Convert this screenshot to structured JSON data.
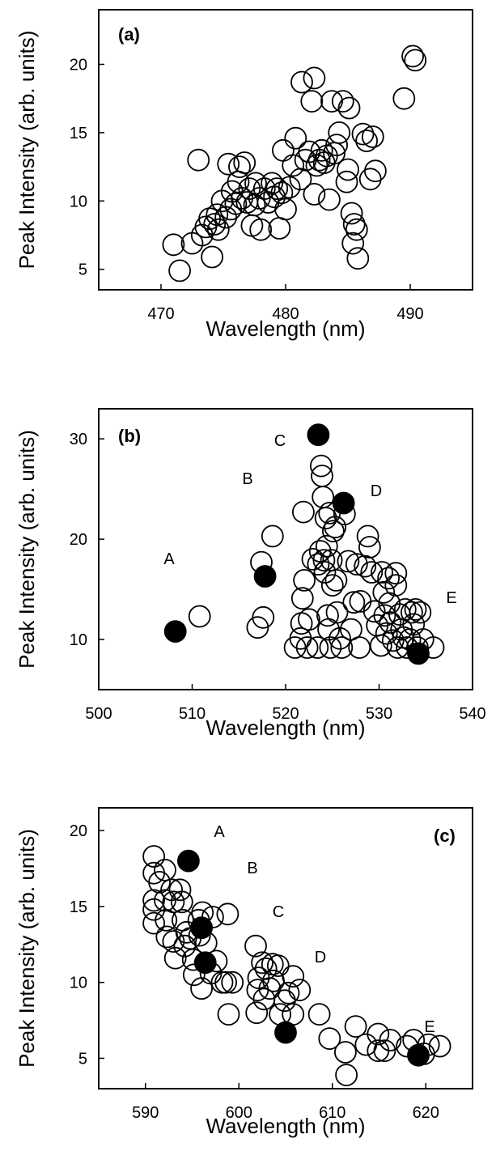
{
  "chart_data": [
    {
      "type": "scatter",
      "panel_label": "(a)",
      "xlabel": "Wavelength (nm)",
      "ylabel": "Peak Intensity (arb. units)",
      "xlim": [
        465,
        495
      ],
      "ylim": [
        3.5,
        24
      ],
      "xticks": [
        470,
        480,
        490
      ],
      "yticks": [
        5,
        10,
        15,
        20
      ],
      "xtick_labels": [
        "470",
        "480",
        "490"
      ],
      "ytick_labels": [
        "5",
        "10",
        "15",
        "20"
      ],
      "grid": false,
      "series": [
        {
          "marker": "open-circle",
          "points": [
            [
              471.0,
              6.8
            ],
            [
              471.5,
              4.9
            ],
            [
              472.5,
              6.9
            ],
            [
              473.0,
              13.0
            ],
            [
              473.3,
              7.5
            ],
            [
              473.6,
              8.1
            ],
            [
              473.9,
              8.7
            ],
            [
              474.1,
              5.9
            ],
            [
              474.3,
              8.3
            ],
            [
              474.5,
              9.0
            ],
            [
              474.6,
              7.9
            ],
            [
              474.9,
              10.0
            ],
            [
              475.2,
              8.8
            ],
            [
              475.4,
              12.7
            ],
            [
              475.6,
              9.4
            ],
            [
              475.7,
              10.7
            ],
            [
              476.0,
              9.8
            ],
            [
              476.2,
              11.4
            ],
            [
              476.3,
              12.5
            ],
            [
              476.5,
              10.2
            ],
            [
              476.7,
              12.8
            ],
            [
              476.9,
              9.9
            ],
            [
              477.1,
              10.9
            ],
            [
              477.3,
              8.2
            ],
            [
              477.5,
              9.7
            ],
            [
              477.6,
              11.3
            ],
            [
              477.9,
              10.2
            ],
            [
              478.0,
              7.9
            ],
            [
              478.3,
              10.9
            ],
            [
              478.6,
              9.9
            ],
            [
              478.9,
              11.3
            ],
            [
              479.1,
              10.3
            ],
            [
              479.3,
              10.9
            ],
            [
              479.5,
              8.0
            ],
            [
              479.7,
              10.6
            ],
            [
              479.8,
              13.7
            ],
            [
              480.0,
              9.4
            ],
            [
              480.3,
              11.0
            ],
            [
              480.6,
              12.6
            ],
            [
              480.8,
              14.6
            ],
            [
              481.2,
              11.6
            ],
            [
              481.3,
              18.7
            ],
            [
              481.6,
              13.0
            ],
            [
              481.9,
              13.6
            ],
            [
              482.1,
              17.3
            ],
            [
              482.3,
              19.0
            ],
            [
              482.3,
              10.5
            ],
            [
              482.5,
              12.6
            ],
            [
              482.7,
              13.0
            ],
            [
              482.9,
              13.7
            ],
            [
              483.1,
              12.8
            ],
            [
              483.3,
              13.3
            ],
            [
              483.5,
              10.1
            ],
            [
              483.7,
              17.3
            ],
            [
              483.9,
              13.5
            ],
            [
              484.1,
              14.1
            ],
            [
              484.3,
              15.0
            ],
            [
              484.6,
              17.3
            ],
            [
              484.9,
              11.4
            ],
            [
              485.0,
              12.3
            ],
            [
              485.1,
              16.8
            ],
            [
              485.3,
              9.1
            ],
            [
              485.4,
              6.9
            ],
            [
              485.5,
              8.3
            ],
            [
              485.7,
              7.9
            ],
            [
              485.8,
              5.8
            ],
            [
              486.2,
              14.9
            ],
            [
              486.5,
              14.4
            ],
            [
              486.8,
              11.6
            ],
            [
              487.0,
              14.7
            ],
            [
              487.2,
              12.2
            ],
            [
              489.5,
              17.5
            ],
            [
              490.2,
              20.6
            ],
            [
              490.4,
              20.3
            ]
          ]
        }
      ]
    },
    {
      "type": "scatter",
      "panel_label": "(b)",
      "xlabel": "Wavelength (nm)",
      "ylabel": "Peak Intensity (arb. units)",
      "xlim": [
        500,
        540
      ],
      "ylim": [
        5,
        33
      ],
      "xticks": [
        500,
        510,
        520,
        530,
        540
      ],
      "yticks": [
        10,
        20,
        30
      ],
      "xtick_labels": [
        "500",
        "510",
        "520",
        "530",
        "540"
      ],
      "ytick_labels": [
        "10",
        "20",
        "30"
      ],
      "grid": false,
      "annotations": [
        "A",
        "B",
        "C",
        "D",
        "E"
      ],
      "series": [
        {
          "marker": "open-circle",
          "points": [
            [
              510.8,
              12.3
            ],
            [
              517.0,
              11.2
            ],
            [
              517.4,
              17.7
            ],
            [
              517.6,
              12.2
            ],
            [
              518.6,
              20.3
            ],
            [
              521.0,
              9.2
            ],
            [
              521.6,
              10.1
            ],
            [
              521.7,
              11.6
            ],
            [
              521.8,
              14.1
            ],
            [
              521.9,
              22.7
            ],
            [
              522.0,
              15.9
            ],
            [
              522.3,
              9.2
            ],
            [
              522.5,
              12.0
            ],
            [
              522.9,
              18.0
            ],
            [
              523.4,
              9.2
            ],
            [
              523.5,
              17.5
            ],
            [
              523.7,
              18.8
            ],
            [
              523.8,
              27.3
            ],
            [
              523.9,
              26.3
            ],
            [
              524.0,
              24.2
            ],
            [
              524.1,
              17.9
            ],
            [
              524.2,
              16.7
            ],
            [
              524.3,
              22.1
            ],
            [
              524.4,
              19.3
            ],
            [
              524.5,
              12.4
            ],
            [
              524.6,
              11.0
            ],
            [
              524.7,
              22.6
            ],
            [
              524.8,
              9.2
            ],
            [
              524.9,
              17.9
            ],
            [
              525.0,
              15.4
            ],
            [
              525.1,
              20.8
            ],
            [
              525.3,
              21.2
            ],
            [
              525.4,
              15.9
            ],
            [
              525.5,
              12.7
            ],
            [
              525.8,
              10.1
            ],
            [
              526.0,
              9.2
            ],
            [
              526.3,
              22.5
            ],
            [
              526.7,
              17.8
            ],
            [
              527.0,
              11.0
            ],
            [
              527.3,
              13.7
            ],
            [
              527.6,
              17.5
            ],
            [
              527.9,
              9.2
            ],
            [
              528.0,
              13.8
            ],
            [
              528.5,
              17.3
            ],
            [
              528.8,
              20.3
            ],
            [
              529.0,
              19.2
            ],
            [
              529.2,
              16.7
            ],
            [
              529.5,
              12.8
            ],
            [
              529.8,
              11.4
            ],
            [
              530.2,
              9.4
            ],
            [
              530.3,
              16.7
            ],
            [
              530.5,
              14.7
            ],
            [
              530.6,
              12.4
            ],
            [
              530.8,
              10.6
            ],
            [
              531.0,
              16.1
            ],
            [
              531.1,
              13.6
            ],
            [
              531.2,
              11.7
            ],
            [
              531.5,
              9.9
            ],
            [
              531.8,
              15.4
            ],
            [
              531.8,
              16.6
            ],
            [
              532.0,
              9.2
            ],
            [
              532.2,
              12.5
            ],
            [
              532.4,
              11.0
            ],
            [
              532.6,
              10.2
            ],
            [
              532.8,
              13.0
            ],
            [
              533.0,
              9.2
            ],
            [
              533.3,
              10.0
            ],
            [
              533.5,
              12.7
            ],
            [
              533.7,
              11.5
            ],
            [
              533.9,
              13.0
            ],
            [
              534.1,
              9.2
            ],
            [
              534.4,
              12.7
            ],
            [
              534.7,
              10.0
            ],
            [
              535.8,
              9.2
            ]
          ]
        },
        {
          "marker": "filled-circle",
          "points": [
            [
              508.2,
              10.8
            ],
            [
              517.8,
              16.3
            ],
            [
              523.5,
              30.4
            ],
            [
              526.2,
              23.6
            ],
            [
              534.2,
              8.6
            ]
          ]
        }
      ]
    },
    {
      "type": "scatter",
      "panel_label": "(c)",
      "xlabel": "Wavelength (nm)",
      "ylabel": "Peak Intensity (arb. units)",
      "xlim": [
        585,
        625
      ],
      "ylim": [
        3,
        21.5
      ],
      "xticks": [
        590,
        600,
        610,
        620
      ],
      "yticks": [
        5,
        10,
        15,
        20
      ],
      "xtick_labels": [
        "590",
        "600",
        "610",
        "620"
      ],
      "ytick_labels": [
        "5",
        "10",
        "15",
        "20"
      ],
      "grid": false,
      "annotations": [
        "A",
        "B",
        "C",
        "D",
        "E"
      ],
      "series": [
        {
          "marker": "open-circle",
          "points": [
            [
              590.9,
              18.3
            ],
            [
              590.9,
              17.2
            ],
            [
              590.9,
              15.4
            ],
            [
              590.9,
              14.8
            ],
            [
              590.9,
              13.9
            ],
            [
              591.5,
              16.6
            ],
            [
              592.1,
              17.4
            ],
            [
              592.1,
              15.4
            ],
            [
              592.2,
              14.1
            ],
            [
              592.3,
              13.0
            ],
            [
              592.8,
              16.1
            ],
            [
              593.0,
              15.3
            ],
            [
              593.0,
              12.7
            ],
            [
              593.2,
              11.6
            ],
            [
              593.7,
              16.1
            ],
            [
              593.9,
              15.3
            ],
            [
              594.0,
              14.1
            ],
            [
              594.2,
              12.4
            ],
            [
              594.4,
              13.3
            ],
            [
              594.8,
              12.9
            ],
            [
              595.1,
              11.5
            ],
            [
              595.2,
              10.5
            ],
            [
              595.7,
              14.1
            ],
            [
              595.8,
              13.1
            ],
            [
              596.0,
              9.6
            ],
            [
              596.1,
              14.6
            ],
            [
              596.5,
              12.6
            ],
            [
              597.0,
              10.6
            ],
            [
              597.2,
              14.3
            ],
            [
              597.6,
              11.4
            ],
            [
              598.2,
              10.0
            ],
            [
              598.6,
              10.0
            ],
            [
              598.8,
              14.5
            ],
            [
              598.9,
              7.9
            ],
            [
              599.3,
              10.0
            ],
            [
              601.8,
              12.4
            ],
            [
              601.9,
              8.0
            ],
            [
              602.0,
              9.5
            ],
            [
              602.1,
              10.3
            ],
            [
              602.5,
              11.3
            ],
            [
              602.7,
              8.9
            ],
            [
              602.9,
              10.9
            ],
            [
              603.3,
              9.6
            ],
            [
              603.6,
              11.2
            ],
            [
              603.7,
              10.1
            ],
            [
              604.2,
              11.1
            ],
            [
              604.4,
              7.9
            ],
            [
              604.9,
              8.8
            ],
            [
              605.3,
              9.3
            ],
            [
              605.8,
              10.4
            ],
            [
              605.8,
              7.9
            ],
            [
              606.5,
              9.5
            ],
            [
              608.6,
              7.9
            ],
            [
              609.7,
              6.3
            ],
            [
              611.4,
              5.4
            ],
            [
              611.5,
              3.9
            ],
            [
              612.5,
              7.1
            ],
            [
              613.6,
              5.9
            ],
            [
              614.9,
              6.6
            ],
            [
              614.9,
              5.5
            ],
            [
              615.6,
              5.5
            ],
            [
              616.2,
              6.2
            ],
            [
              618.0,
              5.8
            ],
            [
              618.7,
              6.2
            ],
            [
              619.8,
              5.3
            ],
            [
              620.3,
              5.9
            ],
            [
              621.5,
              5.8
            ]
          ]
        },
        {
          "marker": "filled-circle",
          "points": [
            [
              594.6,
              18.0
            ],
            [
              596.0,
              13.6
            ],
            [
              596.4,
              11.3
            ],
            [
              605.0,
              6.7
            ],
            [
              619.2,
              5.2
            ]
          ]
        }
      ]
    }
  ]
}
